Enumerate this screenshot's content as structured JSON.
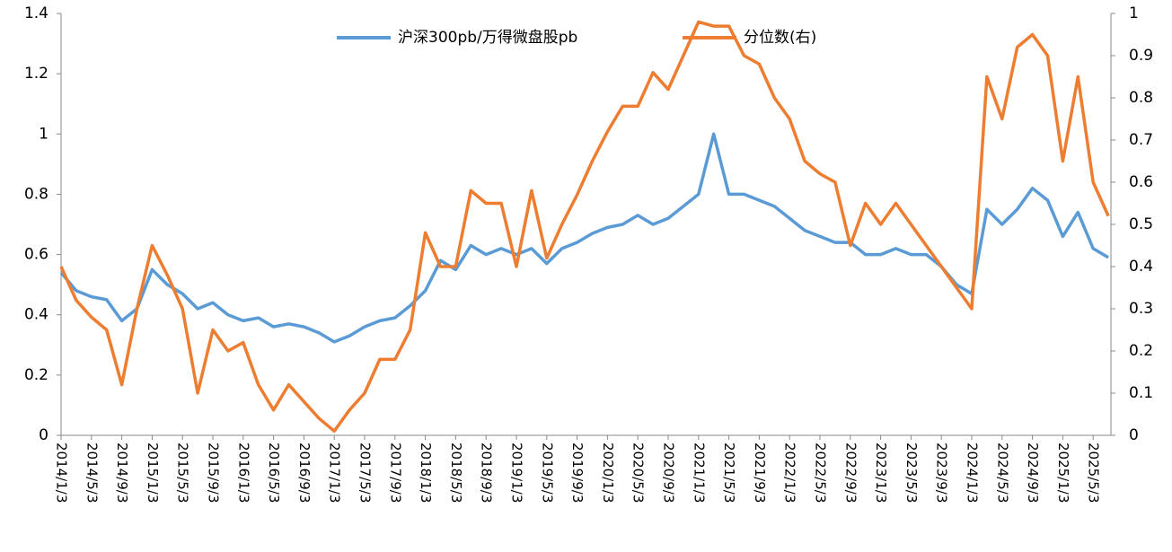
{
  "chart_data": {
    "type": "line",
    "categories": [
      "2014/1/3",
      null,
      "2014/5/3",
      null,
      "2014/9/3",
      null,
      "2015/1/3",
      null,
      "2015/5/3",
      null,
      "2015/9/3",
      null,
      "2016/1/3",
      null,
      "2016/5/3",
      null,
      "2016/9/3",
      null,
      "2017/1/3",
      null,
      "2017/5/3",
      null,
      "2017/9/3",
      null,
      "2018/1/3",
      null,
      "2018/5/3",
      null,
      "2018/9/3",
      null,
      "2019/1/3",
      null,
      "2019/5/3",
      null,
      "2019/9/3",
      null,
      "2020/1/3",
      null,
      "2020/5/3",
      null,
      "2020/9/3",
      null,
      "2021/1/3",
      null,
      "2021/5/3",
      null,
      "2021/9/3",
      null,
      "2022/1/3",
      null,
      "2022/5/3",
      null,
      "2022/9/3",
      null,
      "2023/1/3",
      null,
      "2023/5/3",
      null,
      "2023/9/3",
      null,
      "2024/1/3",
      null,
      "2024/5/3",
      null,
      "2024/9/3",
      null,
      "2025/1/3",
      null,
      "2025/5/3",
      null
    ],
    "series": [
      {
        "name": "沪深300pb/万得微盘股pb",
        "color": "#5b9bd5",
        "values": [
          0.54,
          0.48,
          0.46,
          0.45,
          0.38,
          0.42,
          0.55,
          0.5,
          0.47,
          0.42,
          0.44,
          0.4,
          0.38,
          0.39,
          0.36,
          0.37,
          0.36,
          0.34,
          0.31,
          0.33,
          0.36,
          0.38,
          0.39,
          0.43,
          0.48,
          0.58,
          0.55,
          0.63,
          0.6,
          0.62,
          0.6,
          0.62,
          0.57,
          0.62,
          0.64,
          0.67,
          0.69,
          0.7,
          0.73,
          0.7,
          0.72,
          0.76,
          0.8,
          1.0,
          0.8,
          0.8,
          0.78,
          0.76,
          0.72,
          0.68,
          0.66,
          0.64,
          0.64,
          0.6,
          0.6,
          0.62,
          0.6,
          0.6,
          0.56,
          0.5,
          0.47,
          0.75,
          0.7,
          0.75,
          0.82,
          0.78,
          0.66,
          0.74,
          0.62,
          0.59
        ]
      },
      {
        "name": "分位数(右)",
        "color": "#ed7d31",
        "axis": "y2",
        "values": [
          0.4,
          0.32,
          0.28,
          0.25,
          0.12,
          0.3,
          0.45,
          0.38,
          0.3,
          0.1,
          0.25,
          0.2,
          0.22,
          0.12,
          0.06,
          0.12,
          0.08,
          0.04,
          0.01,
          0.06,
          0.1,
          0.18,
          0.18,
          0.25,
          0.48,
          0.4,
          0.4,
          0.58,
          0.55,
          0.55,
          0.4,
          0.58,
          0.42,
          0.5,
          0.57,
          0.65,
          0.72,
          0.78,
          0.78,
          0.86,
          0.82,
          0.9,
          0.98,
          0.97,
          0.97,
          0.9,
          0.88,
          0.8,
          0.75,
          0.65,
          0.62,
          0.6,
          0.45,
          0.55,
          0.5,
          0.55,
          0.5,
          0.45,
          0.4,
          0.35,
          0.3,
          0.85,
          0.75,
          0.92,
          0.95,
          0.9,
          0.65,
          0.85,
          0.6,
          0.52
        ]
      }
    ],
    "ylim": [
      0,
      1.4
    ],
    "yticks": [
      0,
      0.2,
      0.4,
      0.6,
      0.8,
      1,
      1.2,
      1.4
    ],
    "y2lim": [
      0,
      1
    ],
    "y2ticks": [
      0,
      0.1,
      0.2,
      0.3,
      0.4,
      0.5,
      0.6,
      0.7,
      0.8,
      0.9,
      1
    ],
    "grid": false,
    "legend": "top"
  }
}
